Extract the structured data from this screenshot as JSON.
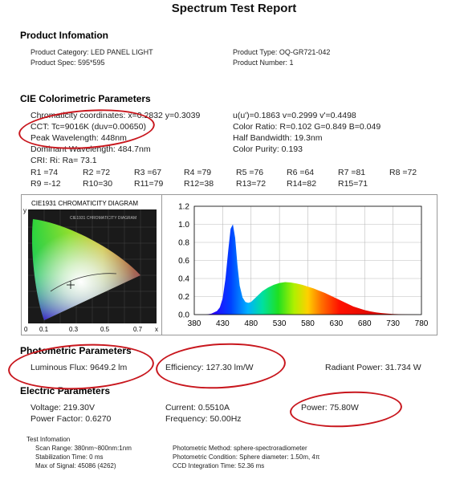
{
  "title": "Spectrum Test Report",
  "product": {
    "heading": "Product Infomation",
    "category": "Product Category:  LED PANEL LIGHT",
    "spec": "Product Spec:  595*595",
    "type": "Product Type:  OQ-GR721-042",
    "number": "Product Number:  1"
  },
  "cie": {
    "heading": "CIE Colorimetric Parameters",
    "chromaticity": "Chromaticity coordinates: x=0.2832  y=0.3039",
    "uv": "u(u')=0.1863  v=0.2999  v'=0.4498",
    "cct": "CCT:  Tc=9016K  (duv=0.00650)",
    "color_ratio": "Color Ratio:  R=0.102   G=0.849   B=0.049",
    "peak": "Peak Wavelength:  448nm",
    "bandwidth": "Half Bandwidth:  19.3nm",
    "dominant": "Dominant Wavelength:  484.7nm",
    "purity": "Color Purity:  0.193",
    "cri": "CRI:  Ri:  Ra=  73.1",
    "r_values": [
      "R1 =74",
      "R2 =72",
      "R3 =67",
      "R4 =79",
      "R5 =76",
      "R6 =64",
      "R7 =81",
      "R8 =72",
      "R9 =-12",
      "R10=30",
      "R11=79",
      "R12=38",
      "R13=72",
      "R14=82",
      "R15=71"
    ]
  },
  "cie_diagram": {
    "title": "CIE1931 CHROMATICITY DIAGRAM",
    "inner_title": "CIE1931 CHROMATICITY DIAGRAM",
    "y_label": "y",
    "x_label": "x",
    "x_ticks": [
      "0",
      "0.1",
      "0.3",
      "0.5",
      "0.7"
    ],
    "point": {
      "x": 0.2832,
      "y": 0.3039
    }
  },
  "chart_data": {
    "type": "area",
    "title": "",
    "xlabel": "",
    "ylabel": "",
    "xlim": [
      380,
      780
    ],
    "ylim": [
      0,
      1.2
    ],
    "x_ticks": [
      "380",
      "430",
      "480",
      "530",
      "580",
      "630",
      "680",
      "730",
      "780"
    ],
    "y_ticks": [
      "0.0",
      "0.2",
      "0.4",
      "0.6",
      "0.8",
      "1.0",
      "1.2"
    ],
    "grid": true,
    "series": [
      {
        "x": [
          400,
          410,
          420,
          425,
          430,
          435,
          440,
          444,
          448,
          452,
          456,
          460,
          465,
          470,
          475,
          480,
          485,
          490,
          495,
          500,
          510,
          520,
          530,
          540,
          550,
          560,
          570,
          580,
          590,
          600,
          610,
          620,
          630,
          640,
          650,
          660,
          670,
          680,
          690,
          700,
          710,
          720,
          730,
          740,
          750,
          760,
          780
        ],
        "values": [
          0.0,
          0.01,
          0.04,
          0.08,
          0.18,
          0.4,
          0.72,
          0.95,
          1.0,
          0.85,
          0.55,
          0.32,
          0.19,
          0.14,
          0.13,
          0.14,
          0.17,
          0.2,
          0.23,
          0.26,
          0.3,
          0.33,
          0.35,
          0.36,
          0.355,
          0.345,
          0.33,
          0.31,
          0.29,
          0.265,
          0.24,
          0.21,
          0.18,
          0.15,
          0.12,
          0.09,
          0.07,
          0.05,
          0.035,
          0.025,
          0.017,
          0.011,
          0.007,
          0.004,
          0.002,
          0.001,
          0.0
        ]
      }
    ]
  },
  "photometric": {
    "heading": "Photometric Parameters",
    "flux": "Luminous Flux:  9649.2 lm",
    "efficiency": "Efficiency:  127.30 lm/W",
    "radiant": "Radiant Power:  31.734  W"
  },
  "electric": {
    "heading": "Electric Parameters",
    "voltage": "Voltage:  219.30V",
    "current": "Current:  0.5510A",
    "power": "Power:  75.80W",
    "pf": "Power Factor:  0.6270",
    "freq": "Frequency:  50.00Hz"
  },
  "test": {
    "heading": "Test Infomation",
    "scan": "Scan Range:  380nm~800nm:1nm",
    "stab": "Stabilization Time:  0 ms",
    "max": "Max of Signal:  45086 (4262)",
    "method": "Photometric Method:  sphere-spectroradiometer",
    "condition": "Photometric Condition:  Sphere diameter: 1.50m,  4π",
    "ccd": "CCD Integration Time:  52.36 ms"
  }
}
